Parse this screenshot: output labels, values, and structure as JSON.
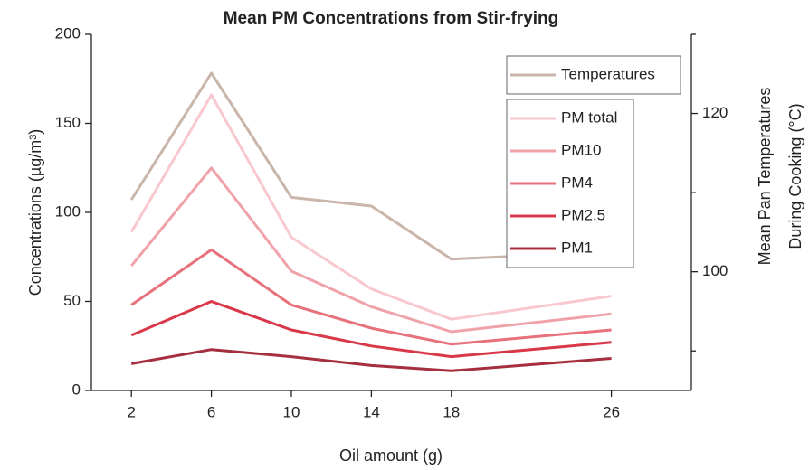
{
  "chart_data": {
    "type": "line",
    "title": "Mean PM Concentrations from Stir-frying",
    "xlabel": "Oil amount (g)",
    "ylabel": "Concentrations (µg/m³)",
    "y2label": [
      "Mean Pan Temperatures",
      "During Cooking (°C)"
    ],
    "x": [
      2,
      6,
      10,
      14,
      18,
      26
    ],
    "xlim": [
      0,
      30
    ],
    "xticks": [
      2,
      6,
      10,
      14,
      18,
      26
    ],
    "ylim": [
      0,
      200
    ],
    "yticks": [
      0,
      50,
      100,
      150,
      200
    ],
    "y2lim": [
      85,
      130
    ],
    "y2ticks": [
      100,
      120
    ],
    "y2minor_ticks": [
      90,
      110,
      130
    ],
    "legend": "upper right",
    "series": [
      {
        "name": "Temperatures",
        "color": "#c9b5a9",
        "axis": "y2",
        "values": [
          109.1,
          125.1,
          109.4,
          108.3,
          101.6,
          102.5
        ]
      },
      {
        "name": "PM total",
        "color": "#f8c8ce",
        "values": [
          89,
          166,
          86,
          57,
          40,
          53
        ]
      },
      {
        "name": "PM10",
        "color": "#f0a2aa",
        "values": [
          70,
          125,
          67,
          47,
          33,
          43
        ]
      },
      {
        "name": "PM4",
        "color": "#e8727c",
        "values": [
          48,
          79,
          48,
          35,
          26,
          34
        ]
      },
      {
        "name": "PM2.5",
        "color": "#d83848",
        "values": [
          31,
          50,
          34,
          25,
          19,
          27
        ]
      },
      {
        "name": "PM1",
        "color": "#a52f3e",
        "values": [
          15,
          23,
          19,
          14,
          11,
          18
        ]
      }
    ]
  }
}
